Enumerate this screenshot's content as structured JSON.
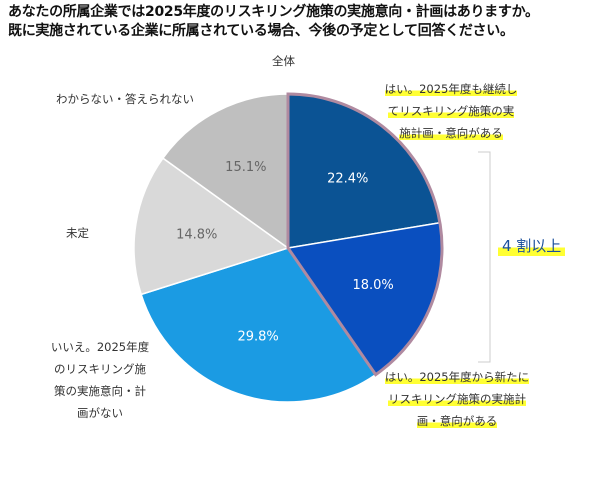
{
  "title_lines": [
    "あなたの所属企業では2025年度のリスキリング施策の実施意向・計画はありますか。",
    "既に実施されている企業に所属されている場合、今後の予定として回答ください。"
  ],
  "chart_data": {
    "type": "pie",
    "title": "全体",
    "slices": [
      {
        "label": "はい。2025年度も継続してリスキリング施策の実施計画・意向がある",
        "value": 22.4,
        "display": "22.4%",
        "color": "#0b5394"
      },
      {
        "label": "はい。2025年度から新たにリスキリング施策の実施計画・意向がある",
        "value": 18.0,
        "display": "18.0%",
        "color": "#0a4fbf"
      },
      {
        "label": "いいえ。2025年度のリスキリング施策の実施意向・計画がない",
        "value": 29.8,
        "display": "29.8%",
        "color": "#1b9be3"
      },
      {
        "label": "未定",
        "value": 14.8,
        "display": "14.8%",
        "color": "#d9d9d9"
      },
      {
        "label": "わからない・答えられない",
        "value": 15.1,
        "display": "15.1%",
        "color": "#bfbfbf"
      }
    ],
    "start": "12 o'clock",
    "direction": "clockwise",
    "highlight_outline_color": "#b08aa0"
  },
  "labels": {
    "yes_continue": [
      "はい。2025年度も継続し",
      "てリスキリング施策の実",
      "施計画・意向がある"
    ],
    "yes_new": [
      "はい。2025年度から新たに",
      "リスキリング施策の実施計",
      "画・意向がある"
    ],
    "no": [
      "いいえ。2025年度",
      "のリスキリング施",
      "策の実施意向・計",
      "画がない"
    ],
    "undecided": "未定",
    "unknown": "わからない・答えられない",
    "bracket_note": "4 割以上"
  }
}
